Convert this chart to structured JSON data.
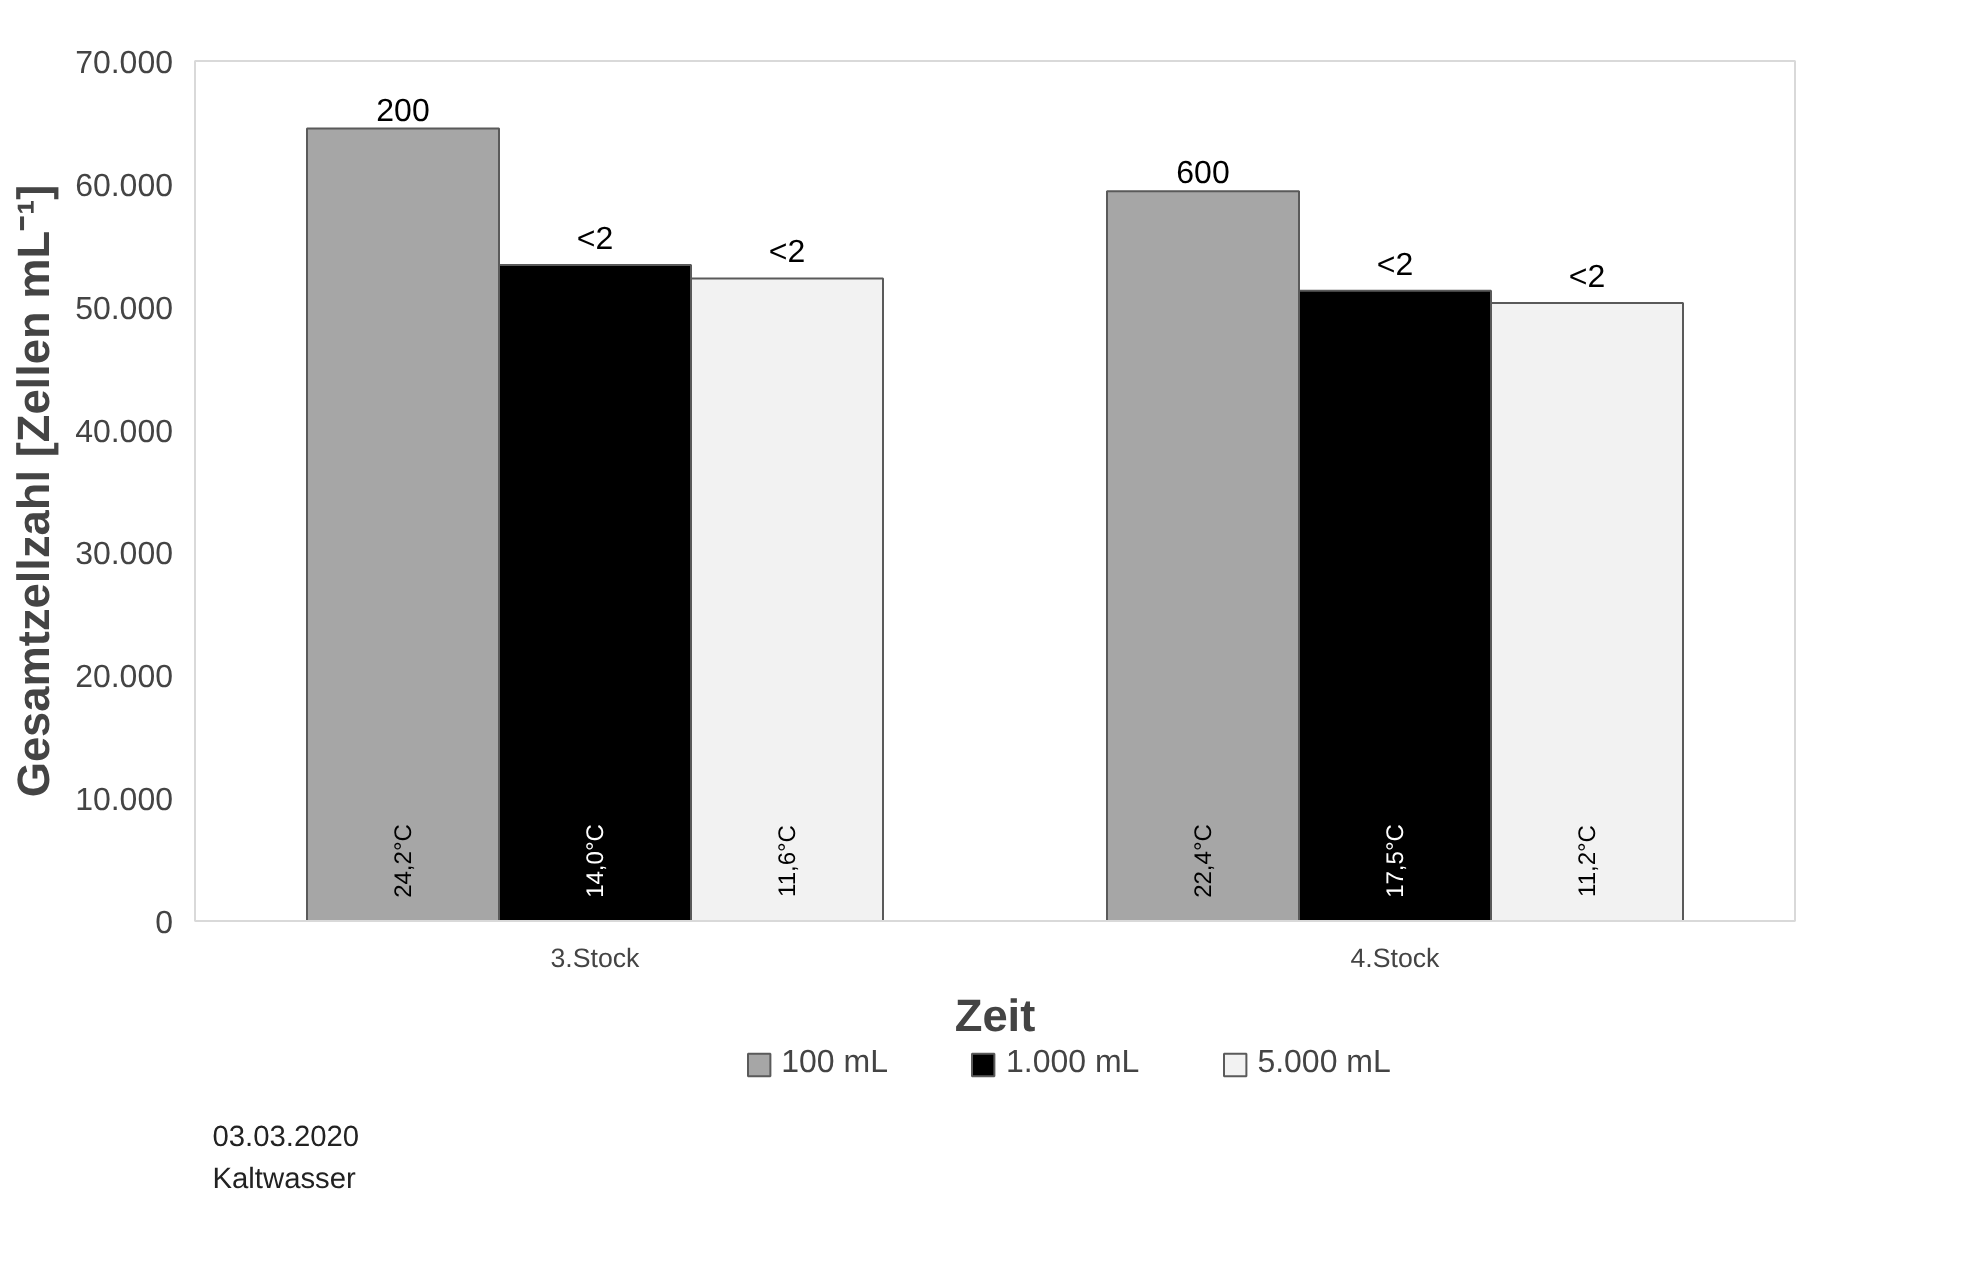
{
  "chart_data": {
    "type": "bar",
    "categories": [
      "3.Stock",
      "4.Stock"
    ],
    "xlabel": "Zeit",
    "ylabel": "Gesamtzellzahl [Zellen mL⁻¹]",
    "ylim": [
      0,
      70000
    ],
    "yticks": [
      {
        "value": 0,
        "label": "0"
      },
      {
        "value": 10000,
        "label": "10.000"
      },
      {
        "value": 20000,
        "label": "20.000"
      },
      {
        "value": 30000,
        "label": "30.000"
      },
      {
        "value": 40000,
        "label": "40.000"
      },
      {
        "value": 50000,
        "label": "50.000"
      },
      {
        "value": 60000,
        "label": "60.000"
      },
      {
        "value": 70000,
        "label": "70.000"
      }
    ],
    "grid": false,
    "legend": "bottom",
    "series": [
      {
        "name": "100 mL",
        "color": "#a6a6a6",
        "values": [
          64500,
          59400
        ]
      },
      {
        "name": "1.000 mL",
        "color": "#000000",
        "values": [
          53400,
          51300
        ]
      },
      {
        "name": "5.000 mL",
        "color": "#f2f2f2",
        "values": [
          52300,
          50300
        ]
      }
    ],
    "annotations": [
      "24,2°C",
      "14,0°C",
      "11,6°C",
      "200",
      "<2",
      "<2",
      "22,4°C",
      "17,5°C",
      "11,2°C",
      "600",
      "<2",
      "<2",
      "03.03.2020",
      "Kaltwasser"
    ]
  }
}
